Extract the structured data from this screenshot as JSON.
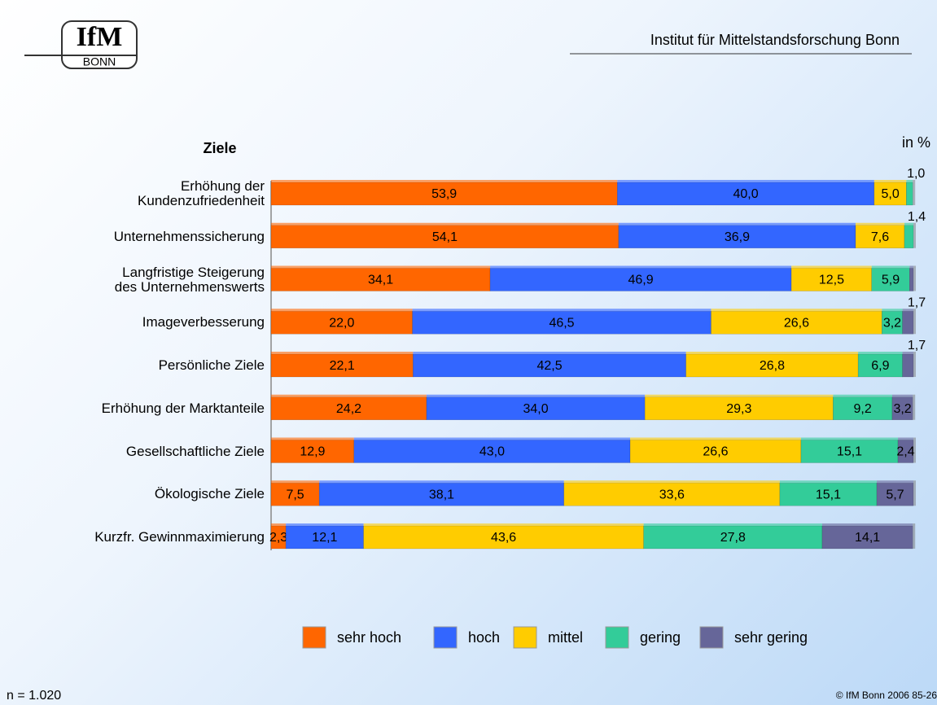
{
  "logo": {
    "text": "IfM",
    "subtext": "BONN"
  },
  "header": "Institut für Mittelstandsforschung Bonn",
  "footer": {
    "n": "n = 1.020",
    "copyright": "© IfM Bonn 2006  85-26"
  },
  "chart_data": {
    "type": "stacked_barh",
    "axis_title": "Ziele",
    "unit": "in %",
    "xlim": [
      0,
      100
    ],
    "categories": [
      "Erhöhung der\nKundenzufriedenheit",
      "Unternehmenssicherung",
      "Langfristige Steigerung\ndes Unternehmenswerts",
      "Imageverbesserung",
      "Persönliche Ziele",
      "Erhöhung der Marktanteile",
      "Gesellschaftliche Ziele",
      "Ökologische Ziele",
      "Kurzfr. Gewinnmaximierung"
    ],
    "series": [
      {
        "name": "sehr hoch",
        "color": "#ff6600",
        "values": [
          53.9,
          54.1,
          34.1,
          22.0,
          22.1,
          24.2,
          12.9,
          7.5,
          2.3
        ],
        "value_labels": [
          "53,9",
          "54,1",
          "34,1",
          "22,0",
          "22,1",
          "24,2",
          "12,9",
          "7,5",
          "2,3"
        ]
      },
      {
        "name": "hoch",
        "color": "#3366ff",
        "values": [
          40.0,
          36.9,
          46.9,
          46.5,
          42.5,
          34.0,
          43.0,
          38.1,
          12.1
        ],
        "value_labels": [
          "40,0",
          "36,9",
          "46,9",
          "46,5",
          "42,5",
          "34,0",
          "43,0",
          "38,1",
          "12,1"
        ]
      },
      {
        "name": "mittel",
        "color": "#ffcc00",
        "values": [
          5.0,
          7.6,
          12.5,
          26.6,
          26.8,
          29.3,
          26.6,
          33.6,
          43.6
        ],
        "value_labels": [
          "5,0",
          "7,6",
          "12,5",
          "26,6",
          "26,8",
          "29,3",
          "26,6",
          "33,6",
          "43,6"
        ]
      },
      {
        "name": "gering",
        "color": "#33cc99",
        "values": [
          1.0,
          1.4,
          5.9,
          3.2,
          6.9,
          9.2,
          15.1,
          15.1,
          27.8
        ],
        "value_labels": [
          "1,0",
          "1,4",
          "5,9",
          "3,2",
          "6,9",
          "9,2",
          "15,1",
          "15,1",
          "27,8"
        ]
      },
      {
        "name": "sehr gering",
        "color": "#666699",
        "values": [
          null,
          null,
          0.6,
          1.7,
          1.7,
          3.2,
          2.4,
          5.7,
          14.1
        ],
        "value_labels": [
          null,
          null,
          null,
          "1,7",
          "1,7",
          "3,2",
          "2,4",
          "5,7",
          "14,1"
        ]
      }
    ]
  }
}
